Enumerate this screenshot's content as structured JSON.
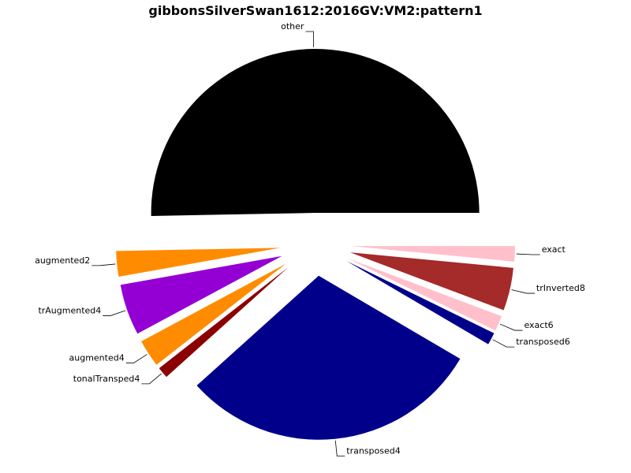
{
  "chart_data": {
    "type": "pie",
    "title": "gibbonsSilverSwan1612:2016GV:VM2:pattern1",
    "slices": [
      {
        "label": "other",
        "value": 0.5,
        "color": "#000000"
      },
      {
        "label": "augmented2",
        "value": 0.025,
        "color": "#ff8c00"
      },
      {
        "label": "trAugmented4",
        "value": 0.05,
        "color": "#9400d3"
      },
      {
        "label": "augmented4",
        "value": 0.027,
        "color": "#ff8c00"
      },
      {
        "label": "tonalTransped4",
        "value": 0.011,
        "color": "#8b0000"
      },
      {
        "label": "transposed4",
        "value": 0.297,
        "color": "#00008b"
      },
      {
        "label": "transposed6",
        "value": 0.012,
        "color": "#00008b"
      },
      {
        "label": "exact6",
        "value": 0.015,
        "color": "#ffc0cb"
      },
      {
        "label": "trInverted8",
        "value": 0.042,
        "color": "#a52a2a"
      },
      {
        "label": "exact",
        "value": 0.015,
        "color": "#ffc0cb"
      }
    ]
  }
}
